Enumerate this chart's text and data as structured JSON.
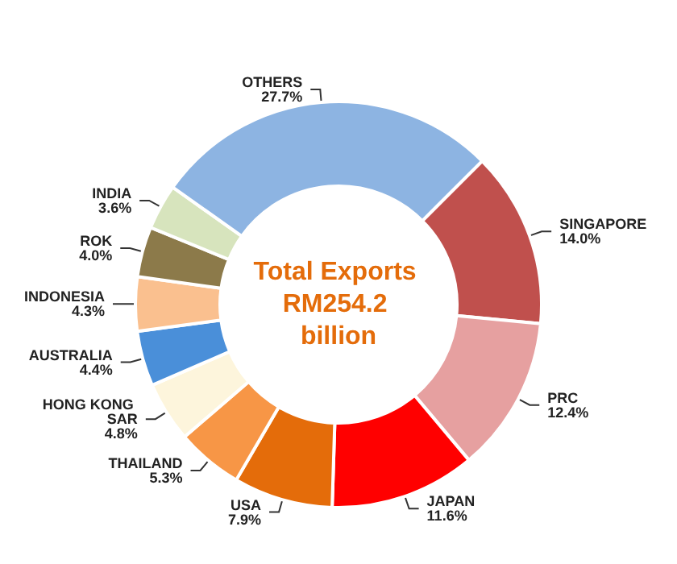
{
  "chart_data": {
    "type": "donut",
    "title": "Total Exports RM254.2 billion",
    "categories": [
      "SINGAPORE",
      "PRC",
      "JAPAN",
      "USA",
      "THAILAND",
      "HONG KONG SAR",
      "AUSTRALIA",
      "INDONESIA",
      "ROK",
      "INDIA",
      "OTHERS"
    ],
    "values": [
      14.0,
      12.4,
      11.6,
      7.9,
      5.3,
      4.8,
      4.4,
      4.3,
      4.0,
      3.6,
      27.7
    ],
    "colors": [
      "#c0504d",
      "#e6a0a0",
      "#ff0000",
      "#e46c0a",
      "#f79646",
      "#fdf5dc",
      "#4a8fd9",
      "#fac08f",
      "#8c7a4a",
      "#d7e4bd",
      "#8db4e2"
    ],
    "value_labels": [
      "14.0%",
      "12.4%",
      "11.6%",
      "7.9%",
      "5.3%",
      "4.8%",
      "4.4%",
      "4.3%",
      "4.0%",
      "3.6%",
      "27.7%"
    ],
    "legend": false
  }
}
